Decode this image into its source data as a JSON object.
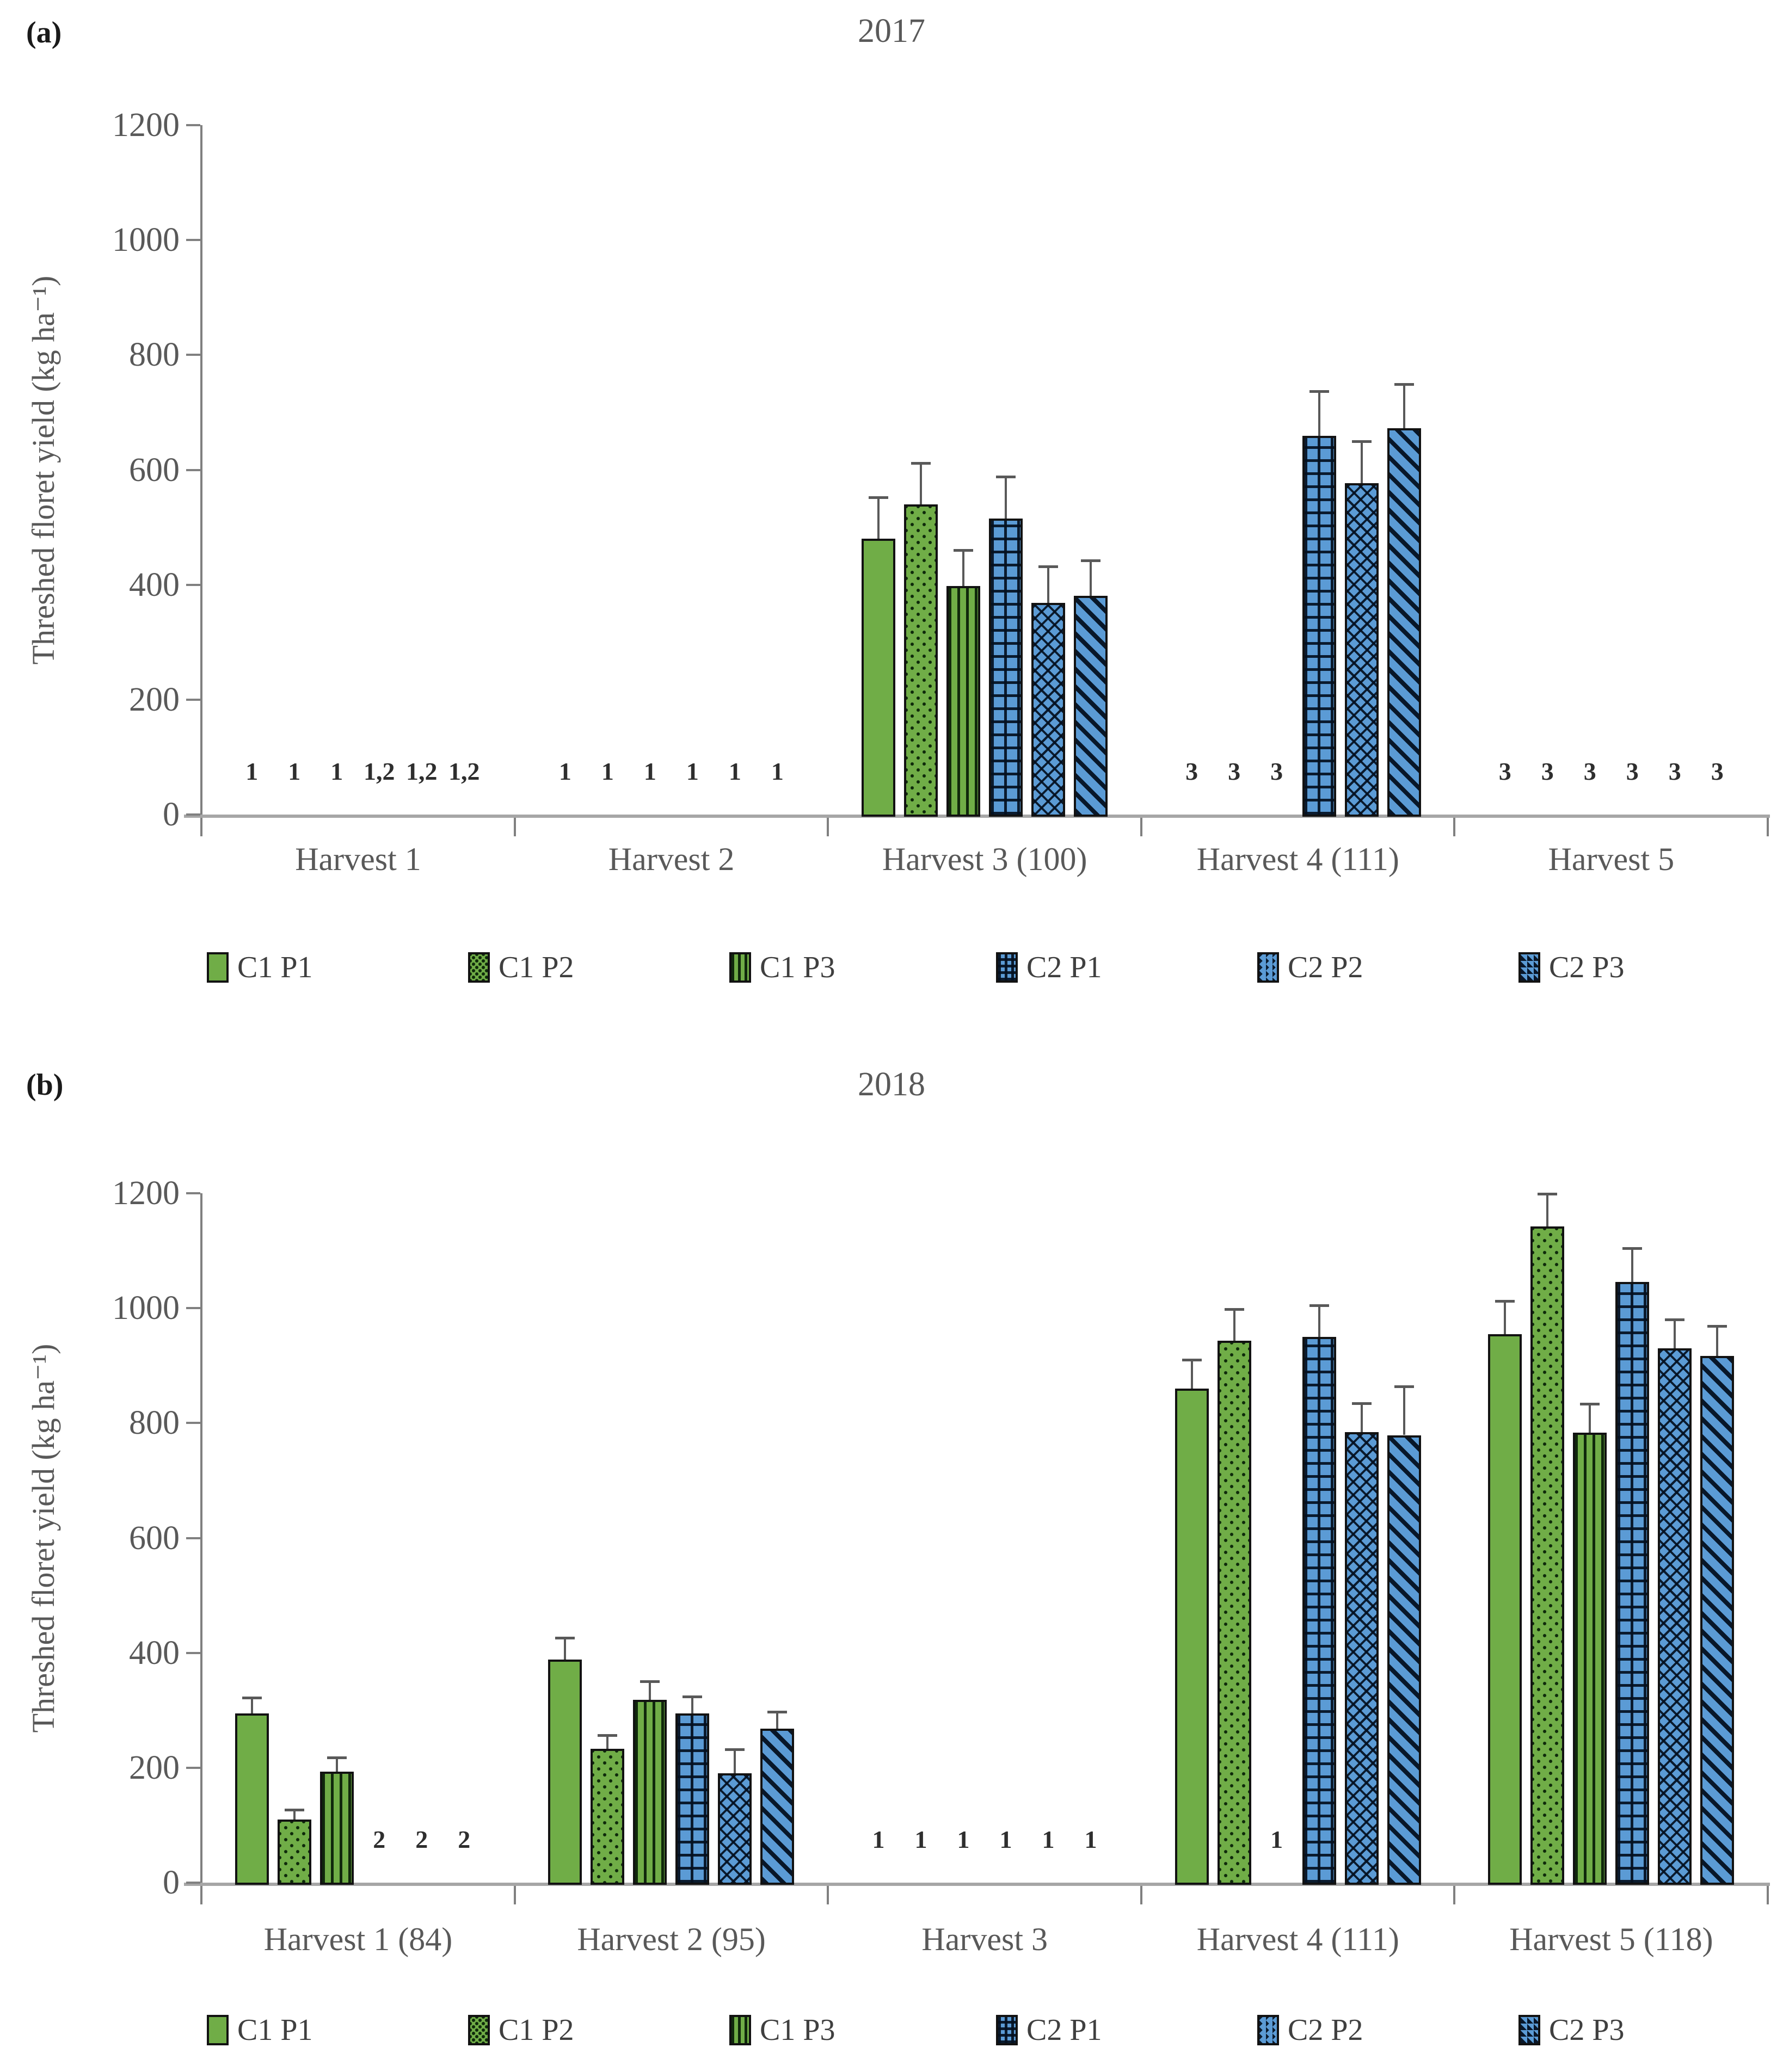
{
  "colors": {
    "c1_green": "#70ad47",
    "c2_blue": "#5b9bd5",
    "bar_border": "#121212",
    "x_axis_line": "#a6a6a6",
    "y_axis_line": "#808080",
    "label_text": "#595959",
    "error_bar": "#595959",
    "annotation_text": "#2e2e2e"
  },
  "chart_data": [
    {
      "type": "bar",
      "panel": "(a)",
      "title": "2017",
      "ylabel": "Threshed floret yield (kg ha⁻¹)",
      "xlabel": "",
      "ylim": [
        0,
        1200
      ],
      "ytick_step": 200,
      "yticks": [
        0,
        200,
        400,
        600,
        800,
        1000,
        1200
      ],
      "grid": false,
      "legend_position": "bottom",
      "categories": [
        "Harvest 1",
        "Harvest 2",
        "Harvest 3 (100)",
        "Harvest 4 (111)",
        "Harvest 5"
      ],
      "series": [
        {
          "name": "C1 P1",
          "pattern": "green-solid",
          "values": [
            0,
            0,
            480,
            0,
            0
          ],
          "errors": [
            0,
            0,
            72,
            0,
            0
          ],
          "sig_labels": [
            "1",
            "1",
            "",
            "3",
            "3"
          ]
        },
        {
          "name": "C1 P2",
          "pattern": "green-dots",
          "values": [
            0,
            0,
            540,
            0,
            0
          ],
          "errors": [
            0,
            0,
            72,
            0,
            0
          ],
          "sig_labels": [
            "1",
            "1",
            "",
            "3",
            "3"
          ]
        },
        {
          "name": "C1 P3",
          "pattern": "green-vstripes",
          "values": [
            0,
            0,
            398,
            0,
            0
          ],
          "errors": [
            0,
            0,
            62,
            0,
            0
          ],
          "sig_labels": [
            "1",
            "1",
            "",
            "3",
            "3"
          ]
        },
        {
          "name": "C2 P1",
          "pattern": "blue-grid",
          "values": [
            0,
            0,
            515,
            659,
            0
          ],
          "errors": [
            0,
            0,
            73,
            78,
            0
          ],
          "sig_labels": [
            "1,2",
            "1",
            "",
            "",
            "3"
          ]
        },
        {
          "name": "C2 P2",
          "pattern": "blue-crosshatch",
          "values": [
            0,
            0,
            368,
            577,
            0
          ],
          "errors": [
            0,
            0,
            64,
            73,
            0
          ],
          "sig_labels": [
            "1,2",
            "1",
            "",
            "",
            "3"
          ]
        },
        {
          "name": "C2 P3",
          "pattern": "blue-diagonal",
          "values": [
            0,
            0,
            381,
            672,
            0
          ],
          "errors": [
            0,
            0,
            61,
            77,
            0
          ],
          "sig_labels": [
            "1,2",
            "1",
            "",
            "",
            "3"
          ]
        }
      ]
    },
    {
      "type": "bar",
      "panel": "(b)",
      "title": "2018",
      "ylabel": "Threshed floret yield (kg ha⁻¹)",
      "xlabel": "",
      "ylim": [
        0,
        1200
      ],
      "ytick_step": 200,
      "yticks": [
        0,
        200,
        400,
        600,
        800,
        1000,
        1200
      ],
      "grid": false,
      "legend_position": "bottom",
      "categories": [
        "Harvest 1 (84)",
        "Harvest 2 (95)",
        "Harvest 3",
        "Harvest 4 (111)",
        "Harvest 5 (118)"
      ],
      "series": [
        {
          "name": "C1 P1",
          "pattern": "green-solid",
          "values": [
            295,
            388,
            0,
            860,
            955
          ],
          "errors": [
            27,
            38,
            0,
            50,
            57
          ],
          "sig_labels": [
            "",
            "",
            "1",
            "",
            ""
          ]
        },
        {
          "name": "C1 P2",
          "pattern": "green-dots",
          "values": [
            110,
            233,
            0,
            943,
            1142
          ],
          "errors": [
            17,
            24,
            0,
            55,
            57
          ],
          "sig_labels": [
            "",
            "",
            "1",
            "",
            ""
          ]
        },
        {
          "name": "C1 P3",
          "pattern": "green-vstripes",
          "values": [
            193,
            318,
            0,
            0,
            783
          ],
          "errors": [
            25,
            32,
            0,
            0,
            50
          ],
          "sig_labels": [
            "",
            "",
            "1",
            "1",
            ""
          ]
        },
        {
          "name": "C2 P1",
          "pattern": "blue-grid",
          "values": [
            0,
            295,
            0,
            950,
            1046
          ],
          "errors": [
            0,
            29,
            0,
            55,
            58
          ],
          "sig_labels": [
            "2",
            "",
            "1",
            "",
            ""
          ]
        },
        {
          "name": "C2 P2",
          "pattern": "blue-crosshatch",
          "values": [
            0,
            190,
            0,
            784,
            930
          ],
          "errors": [
            0,
            42,
            0,
            50,
            50
          ],
          "sig_labels": [
            "2",
            "",
            "1",
            "",
            ""
          ]
        },
        {
          "name": "C2 P3",
          "pattern": "blue-diagonal",
          "values": [
            0,
            268,
            0,
            779,
            917
          ],
          "errors": [
            0,
            29,
            0,
            85,
            52
          ],
          "sig_labels": [
            "2",
            "",
            "1",
            "",
            ""
          ]
        }
      ]
    }
  ]
}
